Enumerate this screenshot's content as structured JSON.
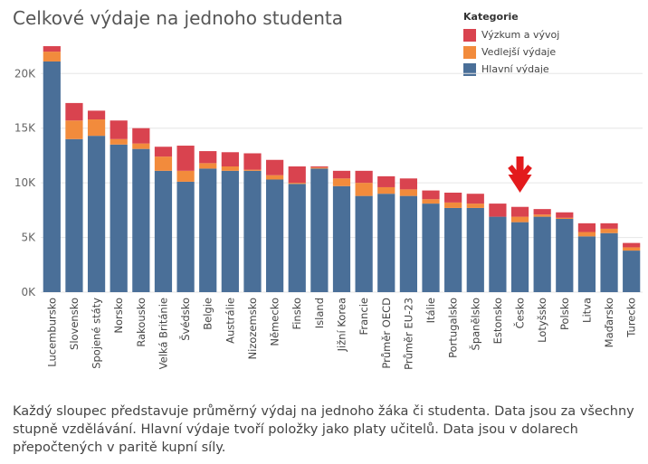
{
  "title": "Celkové výdaje na jednoho studenta",
  "legend": {
    "title": "Kategorie",
    "items": [
      {
        "label": "Výzkum a vývoj",
        "color": "#d9434f"
      },
      {
        "label": "Vedlejší výdaje",
        "color": "#f28b3c"
      },
      {
        "label": "Hlavní výdaje",
        "color": "#4a6f98"
      }
    ]
  },
  "caption": "Každý sloupec představuje průměrný výdaj na jednoho žáka či studenta. Data jsou za všechny stupně vzdělávání. Hlavní výdaje tvoří položky jako platy učitelů. Data jsou v dolarech přepočtených v paritě kupní síly.",
  "highlight": {
    "category": "Česko",
    "marker": "red-down-arrow",
    "color": "#e31a1c"
  },
  "chart_data": {
    "type": "bar",
    "stacked": true,
    "categories": [
      "Lucembursko",
      "Slovensko",
      "Spojené státy",
      "Norsko",
      "Rakousko",
      "Velká Británie",
      "Švédsko",
      "Belgie",
      "Austrálie",
      "Nizozemsko",
      "Německo",
      "Finsko",
      "Island",
      "Jižní Korea",
      "Francie",
      "Průměr OECD",
      "Průměr EU-23",
      "Itálie",
      "Portugalsko",
      "Španělsko",
      "Estonsko",
      "Česko",
      "Lotyšsko",
      "Polsko",
      "Litva",
      "Maďarsko",
      "Turecko"
    ],
    "series": [
      {
        "name": "Hlavní výdaje",
        "color": "#4a6f98",
        "values": [
          21100,
          14000,
          14300,
          13500,
          13100,
          11100,
          10100,
          11300,
          11100,
          11100,
          10300,
          9900,
          11300,
          9700,
          8800,
          9000,
          8800,
          8100,
          7700,
          7700,
          6900,
          6400,
          6900,
          6700,
          5100,
          5400,
          3800
        ]
      },
      {
        "name": "Vedlejší výdaje",
        "color": "#f28b3c",
        "values": [
          900,
          1700,
          1500,
          500,
          500,
          1300,
          1000,
          500,
          400,
          100,
          400,
          100,
          100,
          700,
          1200,
          600,
          600,
          400,
          500,
          400,
          0,
          500,
          200,
          100,
          400,
          400,
          300
        ]
      },
      {
        "name": "Výzkum a vývoj",
        "color": "#d9434f",
        "values": [
          500,
          1600,
          800,
          1700,
          1400,
          900,
          2300,
          1100,
          1300,
          1500,
          1400,
          1500,
          100,
          700,
          1100,
          1000,
          1000,
          800,
          900,
          900,
          1200,
          900,
          500,
          500,
          800,
          500,
          400
        ]
      }
    ],
    "y_ticks": [
      0,
      5000,
      10000,
      15000,
      20000
    ],
    "y_tick_labels": [
      "0K",
      "5K",
      "10K",
      "15K",
      "20K"
    ],
    "ylim": [
      0,
      23000
    ],
    "grid": true,
    "legend_position": "top-right"
  }
}
